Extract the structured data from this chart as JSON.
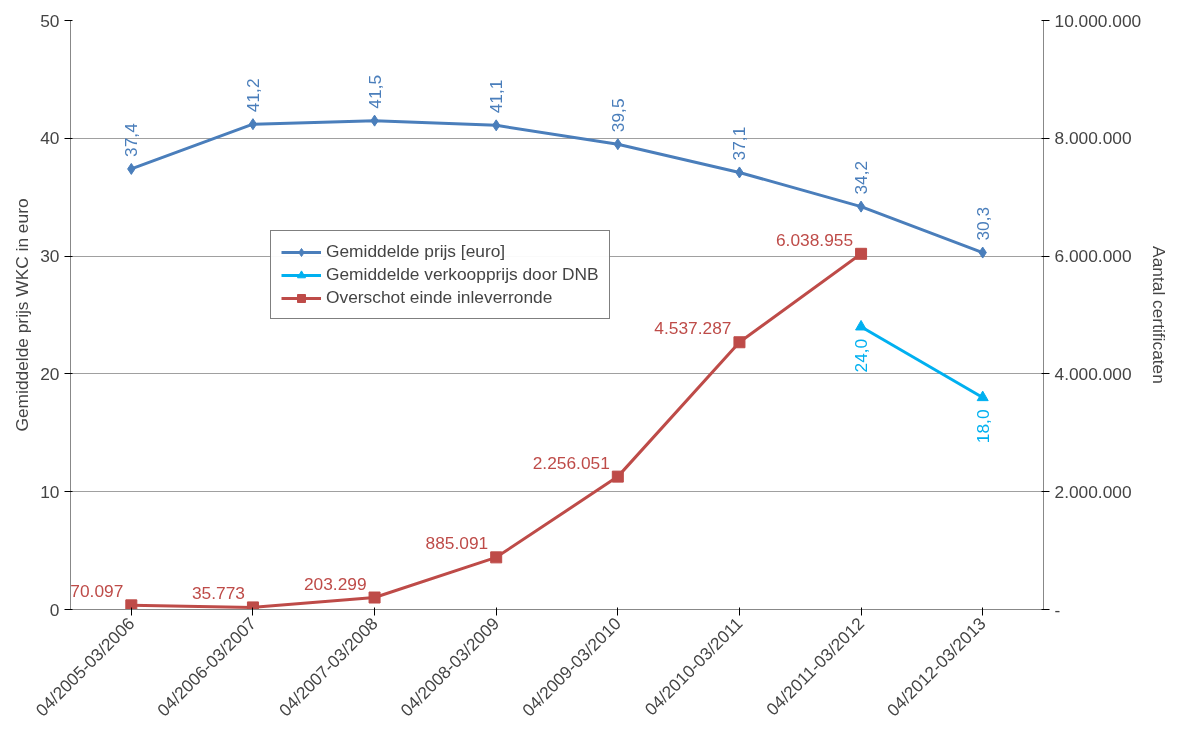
{
  "chart_data": {
    "type": "line",
    "ylabel": "Gemiddelde prijs WKC in euro",
    "y2label": "Aantal certificaten",
    "categories": [
      "04/2005-03/2006",
      "04/2006-03/2007",
      "04/2007-03/2008",
      "04/2008-03/2009",
      "04/2009-03/2010",
      "04/2010-03/2011",
      "04/2011-03/2012",
      "04/2012-03/2013"
    ],
    "series": [
      {
        "name": "Gemiddelde prijs [euro]",
        "color": "#4a7ebb",
        "marker": "diamond",
        "values": [
          37.4,
          41.2,
          41.5,
          41.1,
          39.5,
          37.1,
          34.2,
          30.3
        ],
        "value_labels": [
          "37,4",
          "41,2",
          "41,5",
          "41,1",
          "39,5",
          "37,1",
          "34,2",
          "30,3"
        ]
      },
      {
        "name": "Gemiddelde verkoopprijs door DNB",
        "color": "#00b0f0",
        "marker": "triangle",
        "values": [
          null,
          null,
          null,
          null,
          null,
          null,
          24.0,
          18.0
        ],
        "value_labels": [
          null,
          null,
          null,
          null,
          null,
          null,
          "24,0",
          "18,0"
        ]
      },
      {
        "name": "Overschot einde inleverronde",
        "color": "#be4b48",
        "marker": "square",
        "axis": "y2",
        "values": [
          70097,
          35773,
          203299,
          885091,
          2256051,
          4537287,
          6038955,
          null
        ],
        "value_labels": [
          "70.097",
          "35.773",
          "203.299",
          "885.091",
          "2.256.051",
          "4.537.287",
          "6.038.955",
          null
        ]
      }
    ],
    "ylim": [
      0,
      50
    ],
    "yticks": [
      0,
      10,
      20,
      30,
      40,
      50
    ],
    "y2lim": [
      0,
      10000000
    ],
    "y2ticks": [
      {
        "value": 0,
        "label": "-"
      },
      {
        "value": 2000000,
        "label": "2.000.000"
      },
      {
        "value": 4000000,
        "label": "4.000.000"
      },
      {
        "value": 6000000,
        "label": "6.000.000"
      },
      {
        "value": 8000000,
        "label": "8.000.000"
      },
      {
        "value": 10000000,
        "label": "10.000.000"
      }
    ],
    "grid": "y",
    "legend": "top left",
    "line_style": "solid"
  }
}
